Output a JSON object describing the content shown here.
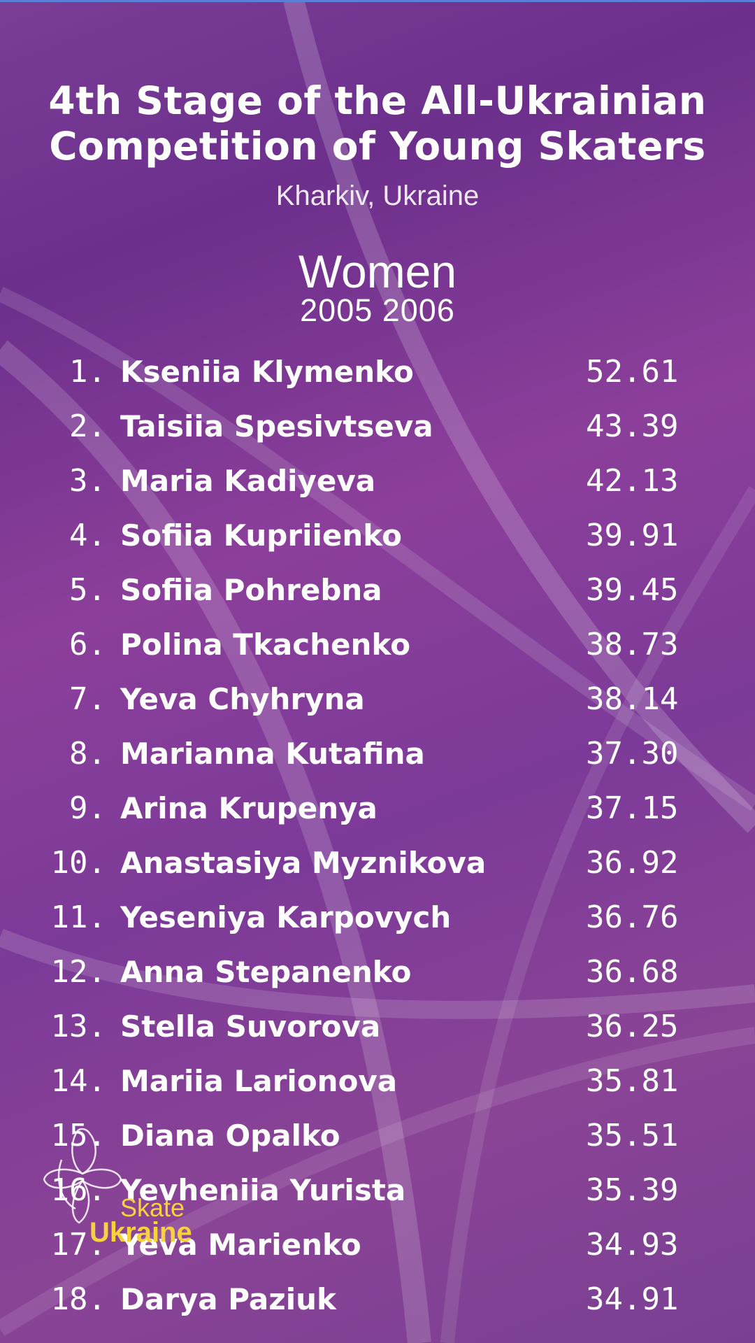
{
  "header": {
    "title_line1": "4th Stage of the All-Ukrainian",
    "title_line2": "Competition of Young Skaters",
    "location": "Kharkiv, Ukraine",
    "category": "Women",
    "birth_years": "2005 2006"
  },
  "results": [
    {
      "rank": "1.",
      "name": "Kseniia Klymenko",
      "score": "52.61"
    },
    {
      "rank": "2.",
      "name": "Taisiia Spesivtseva",
      "score": "43.39"
    },
    {
      "rank": "3.",
      "name": "Maria Kadiyeva",
      "score": "42.13"
    },
    {
      "rank": "4.",
      "name": "Sofiia Kupriienko",
      "score": "39.91"
    },
    {
      "rank": "5.",
      "name": "Sofiia Pohrebna",
      "score": "39.45"
    },
    {
      "rank": "6.",
      "name": "Polina Tkachenko",
      "score": "38.73"
    },
    {
      "rank": "7.",
      "name": "Yeva Chyhryna",
      "score": "38.14"
    },
    {
      "rank": "8.",
      "name": "Marianna Kutafina",
      "score": "37.30"
    },
    {
      "rank": "9.",
      "name": "Arina Krupenya",
      "score": "37.15"
    },
    {
      "rank": "10.",
      "name": "Anastasiya Myznikova",
      "score": "36.92"
    },
    {
      "rank": "11.",
      "name": "Yeseniya Karpovych",
      "score": "36.76"
    },
    {
      "rank": "12.",
      "name": "Anna Stepanenko",
      "score": "36.68"
    },
    {
      "rank": "13.",
      "name": "Stella Suvorova",
      "score": "36.25"
    },
    {
      "rank": "14.",
      "name": "Mariia Larionova",
      "score": "35.81"
    },
    {
      "rank": "15.",
      "name": "Diana Opalko",
      "score": "35.51"
    },
    {
      "rank": "16.",
      "name": "Yevheniia Yurista",
      "score": "35.39"
    },
    {
      "rank": "17.",
      "name": "Yeva Marienko",
      "score": "34.93"
    },
    {
      "rank": "18.",
      "name": "Darya Paziuk",
      "score": "34.91"
    }
  ],
  "logo": {
    "line1": "Skate",
    "line2": "Ukraine",
    "icon": "skater-flower-icon"
  },
  "colors": {
    "background": "#7a3e97",
    "text": "#ffffff",
    "logo_accent": "#f7d23c"
  }
}
